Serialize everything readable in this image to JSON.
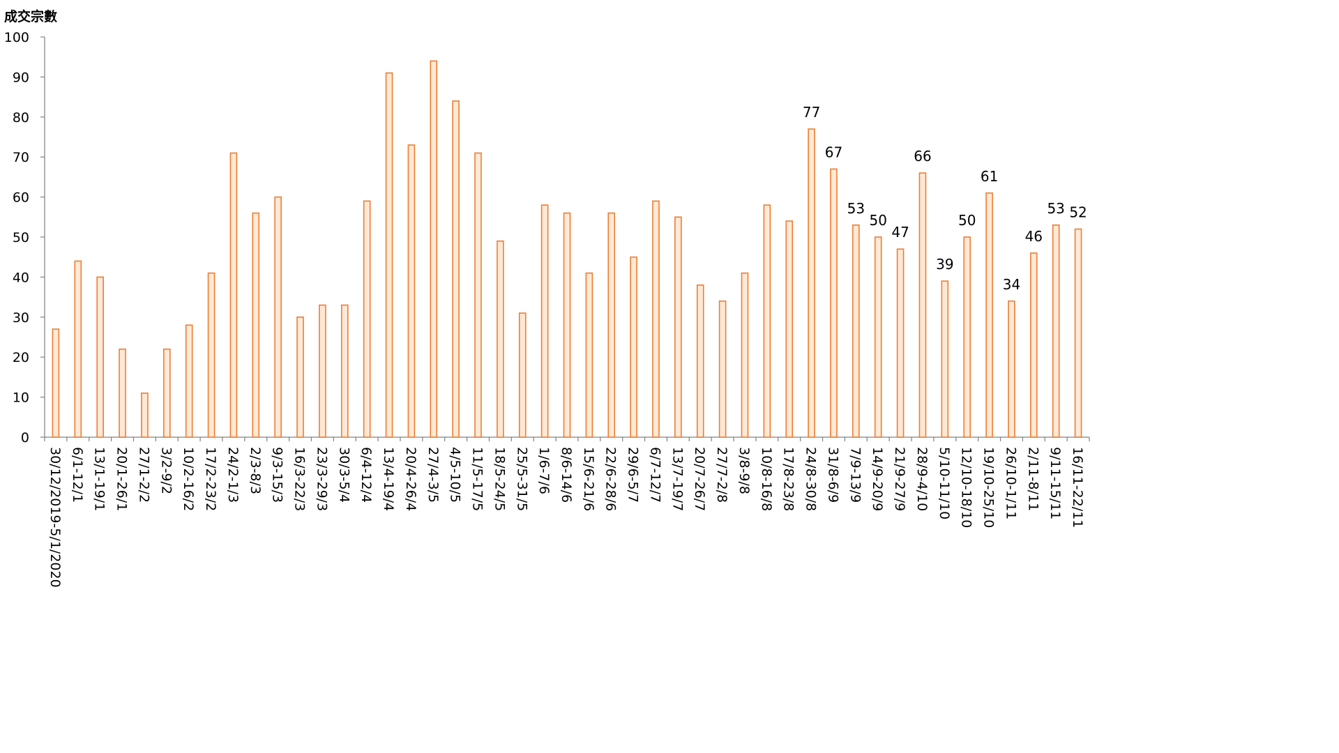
{
  "chart_data": {
    "type": "bar",
    "title": "",
    "xlabel": "",
    "ylabel": "成交宗數",
    "ylim": [
      0,
      100
    ],
    "y_ticks": [
      0,
      10,
      20,
      30,
      40,
      50,
      60,
      70,
      80,
      90,
      100
    ],
    "grid": false,
    "legend": "none",
    "bar_fill_color": "#FFE9D6",
    "bar_stroke_color": "#ED7D31",
    "axis_color": "#808080",
    "categories": [
      "30/12/2019-5/1/2020",
      "6/1-12/1",
      "13/1-19/1",
      "20/1-26/1",
      "27/1-2/2",
      "3/2-9/2",
      "10/2-16/2",
      "17/2-23/2",
      "24/2-1/3",
      "2/3-8/3",
      "9/3-15/3",
      "16/3-22/3",
      "23/3-29/3",
      "30/3-5/4",
      "6/4-12/4",
      "13/4-19/4",
      "20/4-26/4",
      "27/4-3/5",
      "4/5-10/5",
      "11/5-17/5",
      "18/5-24/5",
      "25/5-31/5",
      "1/6-7/6",
      "8/6-14/6",
      "15/6-21/6",
      "22/6-28/6",
      "29/6-5/7",
      "6/7-12/7",
      "13/7-19/7",
      "20/7-26/7",
      "27/7-2/8",
      "3/8-9/8",
      "10/8-16/8",
      "17/8-23/8",
      "24/8-30/8",
      "31/8-6/9",
      "7/9-13/9",
      "14/9-20/9",
      "21/9-27/9",
      "28/9-4/10",
      "5/10-11/10",
      "12/10-18/10",
      "19/10-25/10",
      "26/10-1/11",
      "2/11-8/11",
      "9/11-15/11",
      "16/11-22/11"
    ],
    "values": [
      27,
      44,
      40,
      22,
      11,
      22,
      28,
      41,
      71,
      56,
      60,
      30,
      33,
      33,
      59,
      91,
      73,
      94,
      84,
      71,
      49,
      31,
      58,
      56,
      41,
      56,
      45,
      59,
      55,
      38,
      34,
      41,
      58,
      54,
      77,
      67,
      53,
      50,
      47,
      66,
      39,
      50,
      61,
      34,
      46,
      53,
      52
    ],
    "data_labels": [
      null,
      null,
      null,
      null,
      null,
      null,
      null,
      null,
      null,
      null,
      null,
      null,
      null,
      null,
      null,
      null,
      null,
      null,
      null,
      null,
      null,
      null,
      null,
      null,
      null,
      null,
      null,
      null,
      null,
      null,
      null,
      null,
      null,
      null,
      "77",
      "67",
      "53",
      "50",
      "47",
      "66",
      "39",
      "50",
      "61",
      "34",
      "46",
      "53",
      "52"
    ]
  }
}
